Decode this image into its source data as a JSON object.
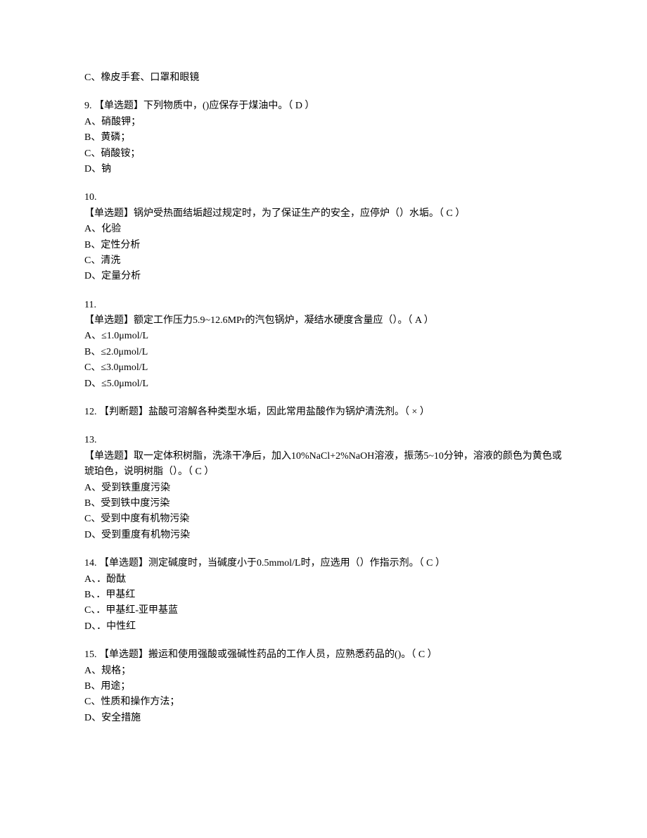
{
  "orphan_option": "C、橡皮手套、口罩和眼镜",
  "q9": {
    "stem": "9. 【单选题】下列物质中，()应保存于煤油中。（  D  ）",
    "opts": [
      "A、硝酸钾；",
      "B、黄磷；",
      "C、硝酸铵；",
      "D、钠"
    ]
  },
  "q10": {
    "num": "10.",
    "stem": "【单选题】锅炉受热面结垢超过规定时，为了保证生产的安全，应停炉（）水垢。（  C  ）",
    "opts": [
      "A、化验",
      "B、定性分析",
      "C、清洗",
      "D、定量分析"
    ]
  },
  "q11": {
    "num": "11.",
    "stem": "【单选题】额定工作压力5.9~12.6MPr的汽包锅炉，凝结水硬度含量应（）。（  A  ）",
    "opts": [
      "A、≤1.0μmol/L",
      "B、≤2.0μmol/L",
      "C、≤3.0μmol/L",
      "D、≤5.0μmol/L"
    ]
  },
  "q12": {
    "stem": "12. 【判断题】盐酸可溶解各种类型水垢，因此常用盐酸作为锅炉清洗剂。（  ×  ）"
  },
  "q13": {
    "num": "13.",
    "stem": "【单选题】取一定体积树脂，洗涤干净后，加入10%NaCl+2%NaOH溶液，振荡5~10分钟，溶液的颜色为黄色或琥珀色，说明树脂（）。（  C  ）",
    "opts": [
      "A、受到铁重度污染",
      "B、受到铁中度污染",
      "C、受到中度有机物污染",
      "D、受到重度有机物污染"
    ]
  },
  "q14": {
    "stem": "14. 【单选题】测定碱度时，当碱度小于0.5mmol/L时，应选用（）作指示剂。（  C  ）",
    "opts": [
      "A、．酚酞",
      "B、．甲基红",
      "C、．甲基红-亚甲基蓝",
      "D、．中性红"
    ]
  },
  "q15": {
    "stem": "15. 【单选题】搬运和使用强酸或强碱性药品的工作人员，应熟悉药品的()。（  C  ）",
    "opts": [
      "A、规格；",
      "B、用途；",
      "C、性质和操作方法；",
      "D、安全措施"
    ]
  }
}
